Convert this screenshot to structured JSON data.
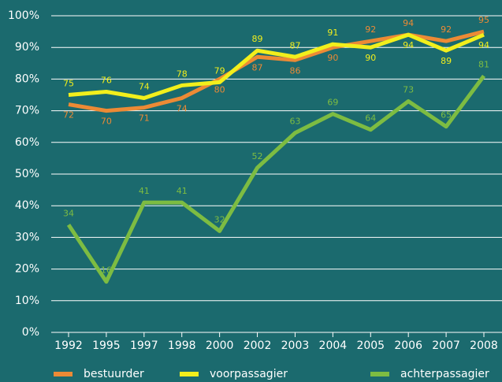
{
  "chart_data": {
    "type": "line",
    "categories": [
      "1992",
      "1995",
      "1997",
      "1998",
      "2000",
      "2002",
      "2003",
      "2004",
      "2005",
      "2006",
      "2007",
      "2008"
    ],
    "series": [
      {
        "name": "bestuurder",
        "color": "#ec8a35",
        "values": [
          72,
          70,
          71,
          74,
          80,
          87,
          86,
          90,
          92,
          94,
          92,
          95
        ]
      },
      {
        "name": "voorpassagier",
        "color": "#f2ef1c",
        "values": [
          75,
          76,
          74,
          78,
          79,
          89,
          87,
          91,
          90,
          94,
          89,
          94
        ]
      },
      {
        "name": "achterpassagier",
        "color": "#7dbc42",
        "values": [
          34,
          16,
          41,
          41,
          32,
          52,
          63,
          69,
          64,
          73,
          65,
          81
        ]
      }
    ],
    "ylim": [
      0,
      100
    ],
    "yticks": [
      {
        "value": 0,
        "label": "0%"
      },
      {
        "value": 10,
        "label": "10%"
      },
      {
        "value": 20,
        "label": "20%"
      },
      {
        "value": 30,
        "label": "30%"
      },
      {
        "value": 40,
        "label": "40%"
      },
      {
        "value": 50,
        "label": "50%"
      },
      {
        "value": 60,
        "label": "60%"
      },
      {
        "value": 70,
        "label": "70%"
      },
      {
        "value": 80,
        "label": "80%"
      },
      {
        "value": 90,
        "label": "90%"
      },
      {
        "value": 100,
        "label": "100%"
      }
    ],
    "grid": true,
    "legend": "bottom"
  }
}
